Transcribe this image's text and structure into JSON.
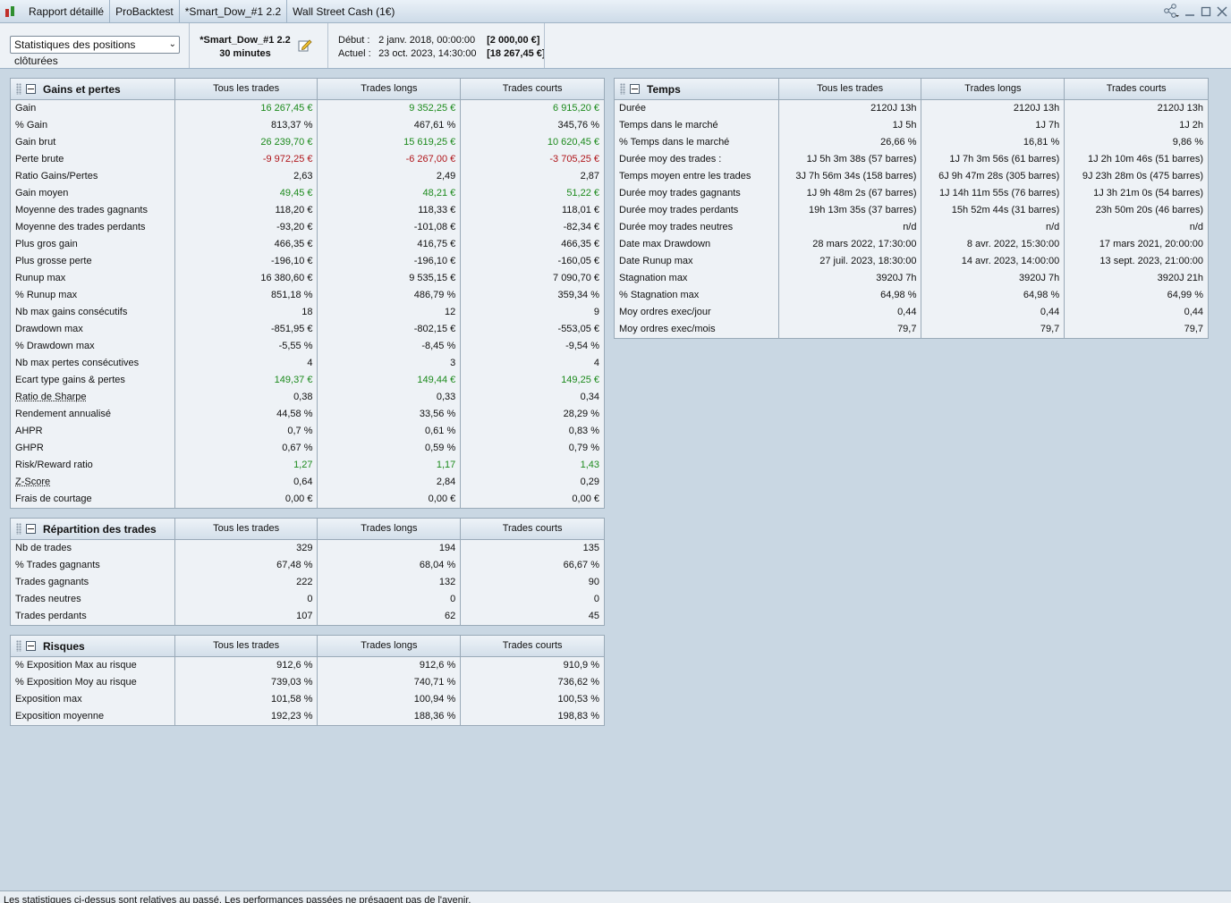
{
  "titlebar": {
    "tabs": [
      "Rapport détaillé",
      "ProBacktest",
      "*Smart_Dow_#1 2.2",
      "Wall Street Cash (1€)"
    ]
  },
  "toolbar": {
    "select_value": "Statistiques des positions clôturées",
    "system_name": "*Smart_Dow_#1 2.2",
    "timeframe": "30 minutes",
    "start_label": "Début :",
    "start_date": "2 janv. 2018, 00:00:00",
    "start_amount": "[2 000,00 €]",
    "current_label": "Actuel :",
    "current_date": "23 oct. 2023, 14:30:00",
    "current_amount": "[18 267,45 €]"
  },
  "columns": [
    "Tous les trades",
    "Trades longs",
    "Trades courts"
  ],
  "colors": {
    "positive": "#1c8a1c",
    "negative": "#b0161b"
  },
  "gains": {
    "title": "Gains et pertes",
    "rows": [
      {
        "label": "Gain",
        "v": [
          "16 267,45 €",
          "9 352,25 €",
          "6 915,20 €"
        ],
        "color": "green"
      },
      {
        "label": "% Gain",
        "v": [
          "813,37 %",
          "467,61 %",
          "345,76 %"
        ]
      },
      {
        "label": "Gain brut",
        "v": [
          "26 239,70 €",
          "15 619,25 €",
          "10 620,45 €"
        ],
        "color": "green"
      },
      {
        "label": "Perte brute",
        "v": [
          "-9 972,25 €",
          "-6 267,00 €",
          "-3 705,25 €"
        ],
        "color": "red"
      },
      {
        "label": "Ratio Gains/Pertes",
        "v": [
          "2,63",
          "2,49",
          "2,87"
        ]
      },
      {
        "label": "Gain moyen",
        "v": [
          "49,45 €",
          "48,21 €",
          "51,22 €"
        ],
        "color": "green"
      },
      {
        "label": "Moyenne des trades gagnants",
        "v": [
          "118,20 €",
          "118,33 €",
          "118,01 €"
        ]
      },
      {
        "label": "Moyenne des trades perdants",
        "v": [
          "-93,20 €",
          "-101,08 €",
          "-82,34 €"
        ]
      },
      {
        "label": "Plus gros gain",
        "v": [
          "466,35 €",
          "416,75 €",
          "466,35 €"
        ]
      },
      {
        "label": "Plus grosse perte",
        "v": [
          "-196,10 €",
          "-196,10 €",
          "-160,05 €"
        ]
      },
      {
        "label": "Runup max",
        "v": [
          "16 380,60 €",
          "9 535,15 €",
          "7 090,70 €"
        ]
      },
      {
        "label": "% Runup max",
        "v": [
          "851,18 %",
          "486,79 %",
          "359,34 %"
        ]
      },
      {
        "label": "Nb max gains consécutifs",
        "v": [
          "18",
          "12",
          "9"
        ]
      },
      {
        "label": "Drawdown max",
        "v": [
          "-851,95 €",
          "-802,15 €",
          "-553,05 €"
        ]
      },
      {
        "label": "% Drawdown max",
        "v": [
          "-5,55 %",
          "-8,45 %",
          "-9,54 %"
        ]
      },
      {
        "label": "Nb max pertes consécutives",
        "v": [
          "4",
          "3",
          "4"
        ]
      },
      {
        "label": "Ecart type gains & pertes",
        "v": [
          "149,37 €",
          "149,44 €",
          "149,25 €"
        ],
        "color": "green"
      },
      {
        "label": "Ratio de Sharpe",
        "v": [
          "0,38",
          "0,33",
          "0,34"
        ],
        "ul": true
      },
      {
        "label": "Rendement annualisé",
        "v": [
          "44,58 %",
          "33,56 %",
          "28,29 %"
        ]
      },
      {
        "label": "AHPR",
        "v": [
          "0,7 %",
          "0,61 %",
          "0,83 %"
        ]
      },
      {
        "label": "GHPR",
        "v": [
          "0,67 %",
          "0,59 %",
          "0,79 %"
        ]
      },
      {
        "label": "Risk/Reward ratio",
        "v": [
          "1,27",
          "1,17",
          "1,43"
        ],
        "color": "green"
      },
      {
        "label": "Z-Score",
        "v": [
          "0,64",
          "2,84",
          "0,29"
        ],
        "ul": true
      },
      {
        "label": "Frais de courtage",
        "v": [
          "0,00 €",
          "0,00 €",
          "0,00 €"
        ]
      }
    ]
  },
  "repartition": {
    "title": "Répartition des trades",
    "rows": [
      {
        "label": "Nb de trades",
        "v": [
          "329",
          "194",
          "135"
        ]
      },
      {
        "label": "% Trades gagnants",
        "v": [
          "67,48 %",
          "68,04 %",
          "66,67 %"
        ]
      },
      {
        "label": "Trades gagnants",
        "v": [
          "222",
          "132",
          "90"
        ]
      },
      {
        "label": "Trades neutres",
        "v": [
          "0",
          "0",
          "0"
        ]
      },
      {
        "label": "Trades perdants",
        "v": [
          "107",
          "62",
          "45"
        ]
      }
    ]
  },
  "risques": {
    "title": "Risques",
    "rows": [
      {
        "label": "% Exposition Max au risque",
        "v": [
          "912,6 %",
          "912,6 %",
          "910,9 %"
        ]
      },
      {
        "label": "% Exposition Moy au risque",
        "v": [
          "739,03 %",
          "740,71 %",
          "736,62 %"
        ]
      },
      {
        "label": "Exposition max",
        "v": [
          "101,58 %",
          "100,94 %",
          "100,53 %"
        ]
      },
      {
        "label": "Exposition moyenne",
        "v": [
          "192,23 %",
          "188,36 %",
          "198,83 %"
        ]
      }
    ]
  },
  "temps": {
    "title": "Temps",
    "rows": [
      {
        "label": "Durée",
        "v": [
          "2120J 13h",
          "2120J 13h",
          "2120J 13h"
        ]
      },
      {
        "label": "Temps dans le marché",
        "v": [
          "1J 5h",
          "1J 7h",
          "1J 2h"
        ]
      },
      {
        "label": "% Temps dans le marché",
        "v": [
          "26,66 %",
          "16,81 %",
          "9,86 %"
        ]
      },
      {
        "label": "Durée moy des trades :",
        "v": [
          "1J 5h 3m 38s (57 barres)",
          "1J 7h 3m 56s (61 barres)",
          "1J 2h 10m 46s (51 barres)"
        ]
      },
      {
        "label": "Temps moyen entre les trades",
        "v": [
          "3J 7h 56m 34s (158 barres)",
          "6J 9h 47m 28s (305 barres)",
          "9J 23h 28m 0s (475 barres)"
        ]
      },
      {
        "label": "Durée moy trades gagnants",
        "v": [
          "1J 9h 48m 2s (67 barres)",
          "1J 14h 11m 55s (76 barres)",
          "1J 3h 21m 0s (54 barres)"
        ]
      },
      {
        "label": "Durée moy trades perdants",
        "v": [
          "19h 13m 35s (37 barres)",
          "15h 52m 44s (31 barres)",
          "23h 50m 20s (46 barres)"
        ]
      },
      {
        "label": "Durée moy trades neutres",
        "v": [
          "n/d",
          "n/d",
          "n/d"
        ]
      },
      {
        "label": "Date max Drawdown",
        "v": [
          "28 mars 2022, 17:30:00",
          "8 avr. 2022, 15:30:00",
          "17 mars 2021, 20:00:00"
        ]
      },
      {
        "label": "Date Runup max",
        "v": [
          "27 juil. 2023, 18:30:00",
          "14 avr. 2023, 14:00:00",
          "13 sept. 2023, 21:00:00"
        ]
      },
      {
        "label": "Stagnation max",
        "v": [
          "3920J 7h",
          "3920J 7h",
          "3920J 21h"
        ]
      },
      {
        "label": "% Stagnation max",
        "v": [
          "64,98 %",
          "64,98 %",
          "64,99 %"
        ]
      },
      {
        "label": "Moy ordres exec/jour",
        "v": [
          "0,44",
          "0,44",
          "0,44"
        ]
      },
      {
        "label": "Moy ordres exec/mois",
        "v": [
          "79,7",
          "79,7",
          "79,7"
        ]
      }
    ]
  },
  "footer": {
    "text": "Les statistiques ci-dessus sont relatives au passé. Les performances passées ne présagent pas de l'avenir."
  }
}
